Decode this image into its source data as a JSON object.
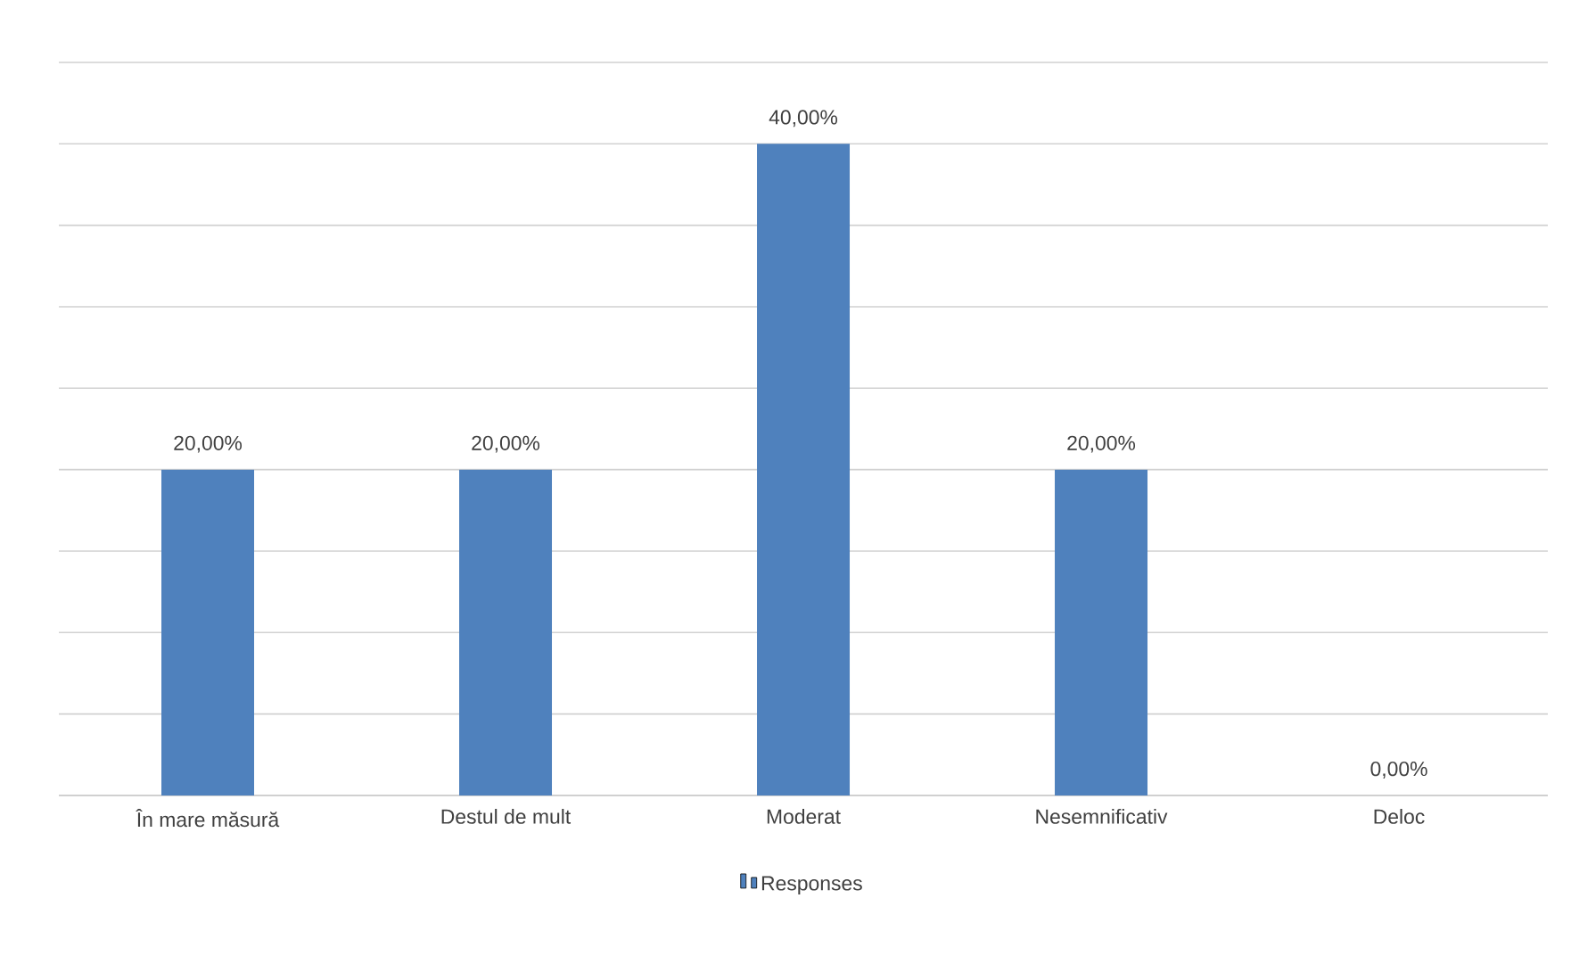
{
  "chart_data": {
    "type": "bar",
    "categories": [
      "În mare măsură",
      "Destul de mult",
      "Moderat",
      "Nesemnificativ",
      "Deloc"
    ],
    "series": [
      {
        "name": "Responses",
        "color": "#4f81bd",
        "values": [
          20,
          20,
          40,
          20,
          0
        ],
        "value_labels": [
          "20,00%",
          "20,00%",
          "40,00%",
          "20,00%",
          "0,00%"
        ]
      }
    ],
    "ylim": [
      0,
      45
    ],
    "yticks": [
      {
        "value": 0,
        "label": null
      },
      {
        "value": 5,
        "label": null
      },
      {
        "value": 10,
        "label": null
      },
      {
        "value": 15,
        "label": null
      },
      {
        "value": 20,
        "label": null
      },
      {
        "value": 25,
        "label": null
      },
      {
        "value": 30,
        "label": null
      },
      {
        "value": 35,
        "label": null
      },
      {
        "value": 40,
        "label": null
      },
      {
        "value": 45,
        "label": null
      }
    ],
    "grid": "y",
    "legend": "bottom",
    "tick_labels": "x"
  }
}
